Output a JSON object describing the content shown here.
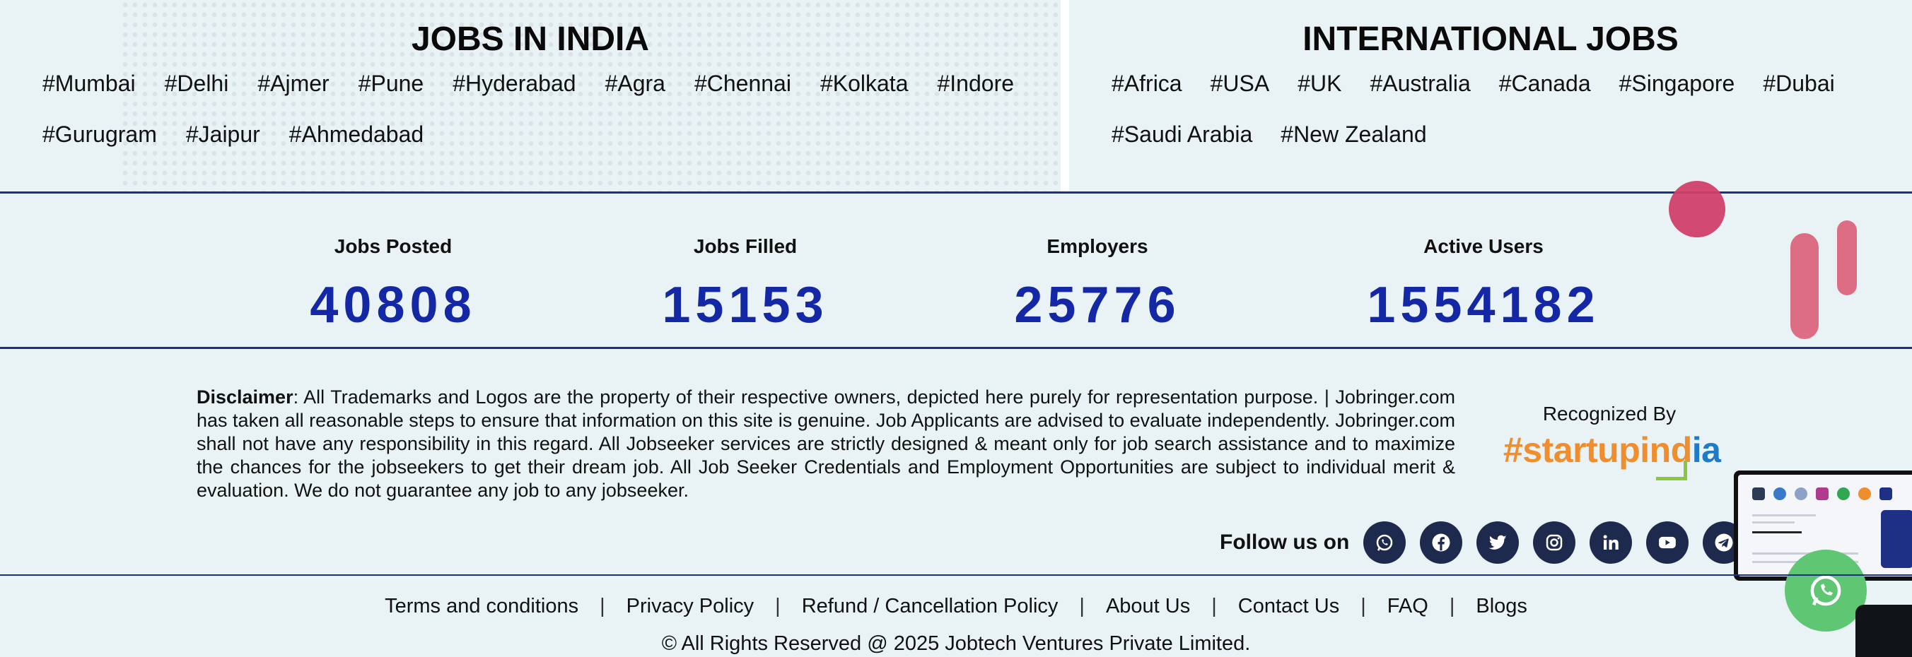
{
  "india": {
    "title": "JOBS IN INDIA",
    "tags": [
      "#Mumbai",
      "#Delhi",
      "#Ajmer",
      "#Pune",
      "#Hyderabad",
      "#Agra",
      "#Chennai",
      "#Kolkata",
      "#Indore",
      "#Gurugram",
      "#Jaipur",
      "#Ahmedabad"
    ]
  },
  "international": {
    "title": "INTERNATIONAL JOBS",
    "tags": [
      "#Africa",
      "#USA",
      "#UK",
      "#Australia",
      "#Canada",
      "#Singapore",
      "#Dubai",
      "#Saudi Arabia",
      "#New Zealand"
    ]
  },
  "stats": [
    {
      "label": "Jobs Posted",
      "value": "40808"
    },
    {
      "label": "Jobs Filled",
      "value": "15153"
    },
    {
      "label": "Employers",
      "value": "25776"
    },
    {
      "label": "Active Users",
      "value": "1554182"
    }
  ],
  "disclaimer": {
    "heading": "Disclaimer",
    "text": ": All Trademarks and Logos are the property of their respective owners, depicted here purely for representation purpose. | Jobringer.com has taken all reasonable steps to ensure that information on this site is genuine. Job Applicants are advised to evaluate independently. Jobringer.com shall not have any responsibility in this regard. All Jobseeker services are strictly designed & meant only for job search assistance and to maximize the chances for the jobseekers to get their dream job. All Job Seeker Credentials and Employment Opportunities are subject to individual merit & evaluation. We do not guarantee any job to any jobseeker."
  },
  "recognized": {
    "label": "Recognized By",
    "logo_part1": "#startupind",
    "logo_part2": "ia"
  },
  "follow": {
    "label": "Follow us on",
    "icons": [
      "whatsapp-icon",
      "facebook-icon",
      "twitter-icon",
      "instagram-icon",
      "linkedin-icon",
      "youtube-icon",
      "telegram-icon"
    ]
  },
  "footer": {
    "links": [
      "Terms and conditions",
      "Privacy Policy",
      "Refund / Cancellation Policy",
      "About Us",
      "Contact Us",
      "FAQ",
      "Blogs"
    ],
    "separator": "|",
    "copyright": "© All Rights Reserved @ 2025 Jobtech Ventures Private Limited."
  },
  "colors": {
    "accent": "#1428a6",
    "rule": "#1e2f86",
    "social_bg": "#1d2a4d",
    "whatsapp": "#5fc774",
    "deco": "#d13f6a"
  }
}
